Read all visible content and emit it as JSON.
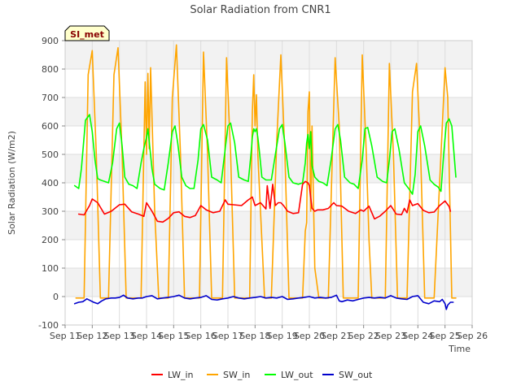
{
  "chart_data": {
    "type": "line",
    "title": "Solar Radiation from CNR1",
    "xlabel": "Time",
    "ylabel": "Solar Radiation (W/m2)",
    "station_label": "SI_met",
    "xlim": [
      11,
      26
    ],
    "ylim": [
      -100,
      900
    ],
    "x_ticks": [
      11,
      12,
      13,
      14,
      15,
      16,
      17,
      18,
      19,
      20,
      21,
      22,
      23,
      24,
      25,
      26
    ],
    "x_tick_labels": [
      "Sep 11",
      "Sep 12",
      "Sep 13",
      "Sep 14",
      "Sep 15",
      "Sep 16",
      "Sep 17",
      "Sep 18",
      "Sep 19",
      "Sep 20",
      "Sep 21",
      "Sep 22",
      "Sep 23",
      "Sep 24",
      "Sep 25",
      "Sep 26"
    ],
    "y_ticks": [
      -100,
      0,
      100,
      200,
      300,
      400,
      500,
      600,
      700,
      800,
      900
    ],
    "y_tick_labels": [
      "-100",
      "0",
      "100",
      "200",
      "300",
      "400",
      "500",
      "600",
      "700",
      "800",
      "900"
    ],
    "grid": true,
    "legend_position": "bottom",
    "series": [
      {
        "name": "LW_in",
        "color": "#ff0000",
        "x": [
          11.5,
          11.7,
          11.9,
          12.0,
          12.2,
          12.45,
          12.7,
          13.0,
          13.2,
          13.45,
          13.7,
          13.9,
          14.0,
          14.2,
          14.4,
          14.6,
          14.8,
          15.0,
          15.2,
          15.4,
          15.6,
          15.8,
          16.0,
          16.2,
          16.45,
          16.7,
          16.9,
          17.0,
          17.2,
          17.5,
          17.75,
          17.9,
          18.0,
          18.2,
          18.4,
          18.45,
          18.55,
          18.65,
          18.75,
          18.85,
          18.95,
          19.05,
          19.2,
          19.4,
          19.6,
          19.75,
          19.85,
          19.95,
          20.0,
          20.1,
          20.2,
          20.3,
          20.5,
          20.7,
          20.9,
          21.0,
          21.2,
          21.45,
          21.7,
          21.9,
          22.0,
          22.2,
          22.4,
          22.6,
          22.8,
          23.0,
          23.2,
          23.4,
          23.5,
          23.6,
          23.7,
          23.8,
          24.0,
          24.2,
          24.4,
          24.6,
          24.8,
          25.0,
          25.15,
          25.2
        ],
        "y": [
          290,
          287,
          320,
          343,
          330,
          290,
          300,
          323,
          325,
          298,
          290,
          282,
          330,
          300,
          265,
          262,
          275,
          295,
          298,
          282,
          278,
          285,
          320,
          305,
          295,
          300,
          340,
          325,
          323,
          320,
          340,
          350,
          320,
          330,
          308,
          390,
          310,
          395,
          320,
          330,
          330,
          320,
          300,
          292,
          295,
          395,
          405,
          400,
          390,
          310,
          300,
          305,
          305,
          310,
          330,
          320,
          318,
          300,
          292,
          305,
          300,
          318,
          273,
          283,
          300,
          320,
          290,
          288,
          310,
          295,
          340,
          320,
          327,
          303,
          295,
          297,
          320,
          336,
          317,
          300
        ]
      },
      {
        "name": "SW_in",
        "color": "#ffa500",
        "x": [
          11.4,
          11.55,
          11.7,
          11.85,
          12.0,
          12.15,
          12.3,
          12.45,
          12.6,
          12.8,
          12.95,
          13.1,
          13.25,
          13.4,
          13.6,
          13.8,
          13.95,
          14.0,
          14.05,
          14.1,
          14.15,
          14.3,
          14.45,
          14.6,
          14.8,
          14.95,
          15.1,
          15.25,
          15.4,
          15.6,
          15.8,
          15.95,
          16.1,
          16.25,
          16.4,
          16.6,
          16.8,
          16.95,
          17.1,
          17.25,
          17.4,
          17.6,
          17.8,
          17.9,
          17.95,
          18.0,
          18.05,
          18.1,
          18.2,
          18.35,
          18.5,
          18.6,
          18.8,
          18.95,
          19.1,
          19.25,
          19.4,
          19.6,
          19.75,
          19.85,
          19.9,
          19.95,
          20.0,
          20.05,
          20.1,
          20.2,
          20.35,
          20.5,
          20.7,
          20.85,
          20.95,
          21.1,
          21.25,
          21.4,
          21.6,
          21.8,
          21.95,
          22.1,
          22.2,
          22.3,
          22.45,
          22.6,
          22.8,
          22.95,
          23.1,
          23.25,
          23.4,
          23.6,
          23.8,
          23.95,
          24.1,
          24.25,
          24.4,
          24.6,
          24.85,
          25.0,
          25.1,
          25.25,
          25.4
        ],
        "y": [
          -5,
          -5,
          -5,
          780,
          865,
          500,
          -5,
          -5,
          -5,
          780,
          875,
          500,
          -5,
          -5,
          -5,
          -5,
          755,
          500,
          785,
          520,
          805,
          300,
          -5,
          -5,
          -5,
          700,
          885,
          500,
          -5,
          -5,
          -5,
          -5,
          860,
          500,
          -5,
          -5,
          -5,
          840,
          500,
          -5,
          -5,
          -5,
          -5,
          650,
          780,
          600,
          710,
          500,
          300,
          -5,
          -5,
          -5,
          550,
          850,
          500,
          -5,
          -5,
          -5,
          -5,
          230,
          260,
          650,
          720,
          300,
          600,
          100,
          -5,
          -5,
          -5,
          500,
          840,
          600,
          -5,
          -5,
          -5,
          -5,
          850,
          500,
          200,
          -5,
          -5,
          -5,
          -5,
          820,
          500,
          -5,
          -5,
          -5,
          720,
          820,
          500,
          -5,
          -5,
          -5,
          500,
          805,
          700,
          -5,
          -5
        ]
      },
      {
        "name": "LW_out",
        "color": "#00ff00",
        "x": [
          11.35,
          11.5,
          11.6,
          11.75,
          11.9,
          12.0,
          12.1,
          12.2,
          12.3,
          12.45,
          12.6,
          12.75,
          12.9,
          13.0,
          13.1,
          13.2,
          13.35,
          13.5,
          13.65,
          13.8,
          13.9,
          13.95,
          14.0,
          14.05,
          14.1,
          14.2,
          14.3,
          14.5,
          14.65,
          14.8,
          14.95,
          15.05,
          15.15,
          15.3,
          15.45,
          15.6,
          15.75,
          15.9,
          16.0,
          16.1,
          16.25,
          16.4,
          16.6,
          16.75,
          16.9,
          17.0,
          17.1,
          17.25,
          17.4,
          17.6,
          17.75,
          17.85,
          17.9,
          17.95,
          18.0,
          18.05,
          18.1,
          18.15,
          18.25,
          18.4,
          18.6,
          18.75,
          18.9,
          19.0,
          19.1,
          19.25,
          19.4,
          19.6,
          19.75,
          19.85,
          19.9,
          19.95,
          20.0,
          20.05,
          20.1,
          20.2,
          20.35,
          20.5,
          20.65,
          20.8,
          20.95,
          21.05,
          21.15,
          21.3,
          21.5,
          21.65,
          21.8,
          21.95,
          22.05,
          22.15,
          22.3,
          22.5,
          22.7,
          22.85,
          22.95,
          23.05,
          23.15,
          23.3,
          23.5,
          23.7,
          23.8,
          23.9,
          24.0,
          24.1,
          24.25,
          24.45,
          24.6,
          24.75,
          24.85,
          24.95,
          25.05,
          25.15,
          25.25,
          25.4
        ],
        "y": [
          390,
          380,
          450,
          620,
          640,
          580,
          480,
          415,
          410,
          405,
          400,
          470,
          590,
          610,
          530,
          420,
          395,
          390,
          380,
          470,
          520,
          540,
          560,
          590,
          545,
          450,
          395,
          380,
          375,
          470,
          580,
          600,
          540,
          420,
          390,
          380,
          380,
          480,
          590,
          605,
          550,
          420,
          410,
          400,
          520,
          600,
          610,
          540,
          420,
          410,
          405,
          500,
          560,
          590,
          580,
          590,
          560,
          520,
          420,
          410,
          410,
          500,
          590,
          605,
          540,
          420,
          400,
          395,
          400,
          470,
          540,
          570,
          520,
          580,
          460,
          420,
          405,
          400,
          390,
          480,
          590,
          605,
          550,
          420,
          400,
          395,
          380,
          480,
          590,
          595,
          530,
          420,
          405,
          400,
          480,
          580,
          590,
          520,
          400,
          375,
          360,
          430,
          580,
          600,
          530,
          410,
          395,
          385,
          370,
          500,
          610,
          625,
          600,
          420
        ]
      },
      {
        "name": "SW_out",
        "color": "#0000cc",
        "x": [
          11.35,
          11.5,
          11.65,
          11.8,
          11.95,
          12.05,
          12.2,
          12.35,
          12.5,
          12.7,
          12.85,
          13.0,
          13.15,
          13.3,
          13.5,
          13.7,
          13.85,
          14.0,
          14.2,
          14.4,
          14.6,
          14.8,
          15.0,
          15.2,
          15.4,
          15.6,
          15.8,
          16.0,
          16.2,
          16.4,
          16.6,
          16.8,
          17.0,
          17.2,
          17.4,
          17.6,
          17.8,
          18.0,
          18.2,
          18.4,
          18.6,
          18.8,
          19.0,
          19.2,
          19.4,
          19.6,
          19.8,
          20.0,
          20.2,
          20.4,
          20.6,
          20.8,
          21.0,
          21.1,
          21.2,
          21.4,
          21.6,
          21.8,
          22.0,
          22.2,
          22.4,
          22.6,
          22.8,
          23.0,
          23.2,
          23.4,
          23.6,
          23.8,
          24.0,
          24.2,
          24.4,
          24.6,
          24.8,
          24.9,
          25.0,
          25.05,
          25.1,
          25.2,
          25.3
        ],
        "y": [
          -25,
          -20,
          -18,
          -8,
          -15,
          -20,
          -25,
          -15,
          -8,
          -5,
          -5,
          -3,
          5,
          -5,
          -8,
          -5,
          -5,
          0,
          3,
          -8,
          -5,
          -3,
          0,
          5,
          -5,
          -8,
          -5,
          -3,
          3,
          -10,
          -12,
          -8,
          -5,
          0,
          -5,
          -8,
          -5,
          -3,
          0,
          -5,
          -3,
          -5,
          0,
          -10,
          -8,
          -5,
          -3,
          0,
          -5,
          -3,
          -5,
          -3,
          5,
          -15,
          -18,
          -12,
          -15,
          -10,
          -5,
          -3,
          -5,
          -3,
          -5,
          3,
          -5,
          -8,
          -10,
          0,
          3,
          -20,
          -25,
          -15,
          -18,
          -10,
          -25,
          -45,
          -30,
          -20,
          -20
        ]
      }
    ]
  }
}
